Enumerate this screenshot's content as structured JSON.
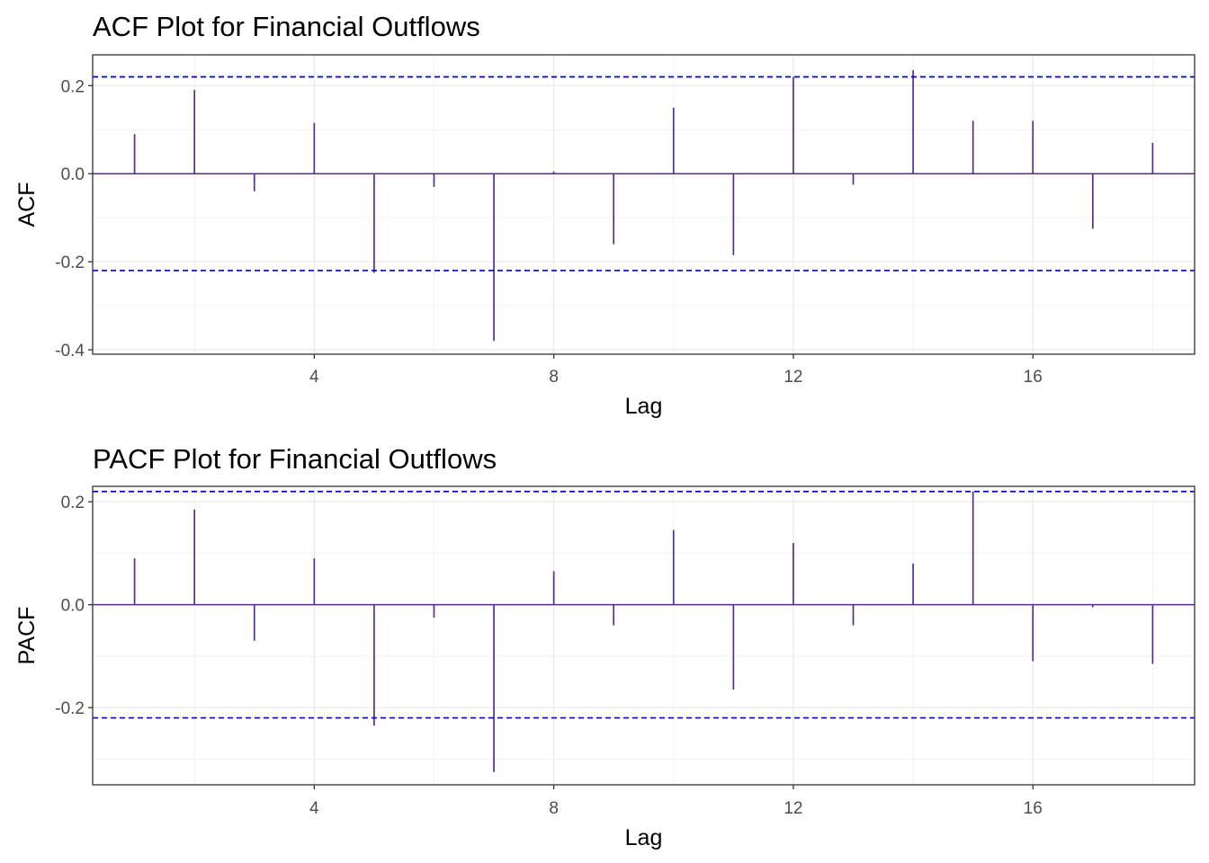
{
  "chart_data": [
    {
      "type": "bar",
      "title": "ACF Plot for Financial Outflows",
      "xlabel": "Lag",
      "ylabel": "ACF",
      "xlim": [
        0.3,
        18.7
      ],
      "ylim": [
        -0.41,
        0.27
      ],
      "x_ticks": [
        4,
        8,
        12,
        16
      ],
      "x_tick_labels": [
        "4",
        "8",
        "12",
        "16"
      ],
      "y_ticks": [
        -0.4,
        -0.2,
        0.0,
        0.2
      ],
      "y_tick_labels": [
        "-0.4",
        "-0.2",
        "0.0",
        "0.2"
      ],
      "confidence_bound": 0.22,
      "grid": true,
      "colors": {
        "bars": "#5b2c8f",
        "bounds": "#0000cc",
        "zero_line": "#5b2c8f"
      },
      "lags": [
        1,
        2,
        3,
        4,
        5,
        6,
        7,
        8,
        9,
        10,
        11,
        12,
        13,
        14,
        15,
        16,
        17,
        18
      ],
      "values": [
        0.09,
        0.19,
        -0.04,
        0.115,
        -0.225,
        -0.03,
        -0.38,
        0.005,
        -0.16,
        0.15,
        -0.185,
        0.22,
        -0.025,
        0.235,
        0.12,
        0.12,
        -0.125,
        0.07
      ]
    },
    {
      "type": "bar",
      "title": "PACF Plot for Financial Outflows",
      "xlabel": "Lag",
      "ylabel": "PACF",
      "xlim": [
        0.3,
        18.7
      ],
      "ylim": [
        -0.35,
        0.23
      ],
      "x_ticks": [
        4,
        8,
        12,
        16
      ],
      "x_tick_labels": [
        "4",
        "8",
        "12",
        "16"
      ],
      "y_ticks": [
        -0.2,
        0.0,
        0.2
      ],
      "y_tick_labels": [
        "-0.2",
        "0.0",
        "0.2"
      ],
      "confidence_bound": 0.22,
      "grid": true,
      "colors": {
        "bars": "#5b2c8f",
        "bounds": "#0000cc",
        "zero_line": "#5b2c8f"
      },
      "lags": [
        1,
        2,
        3,
        4,
        5,
        6,
        7,
        8,
        9,
        10,
        11,
        12,
        13,
        14,
        15,
        16,
        17,
        18
      ],
      "values": [
        0.09,
        0.185,
        -0.07,
        0.09,
        -0.235,
        -0.025,
        -0.325,
        0.065,
        -0.04,
        0.145,
        -0.165,
        0.12,
        -0.04,
        0.08,
        0.22,
        -0.11,
        -0.005,
        -0.115
      ]
    }
  ]
}
